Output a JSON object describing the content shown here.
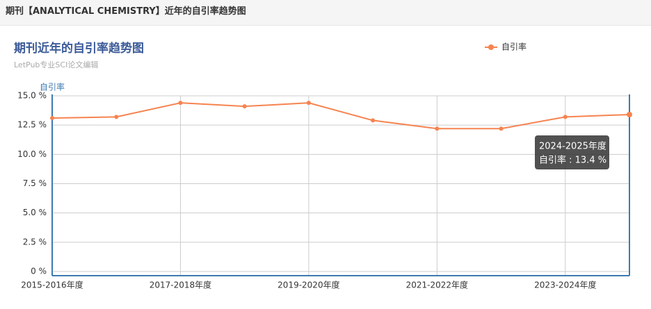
{
  "header": {
    "title": "期刊【ANALYTICAL CHEMISTRY】近年的自引率趋势图"
  },
  "chart_data": {
    "type": "line",
    "title": "期刊近年的自引率趋势图",
    "subtitle": "LetPub专业SCI论文编辑",
    "y_axis_label": "自引率",
    "categories": [
      "2015-2016年度",
      null,
      "2017-2018年度",
      null,
      "2019-2020年度",
      null,
      "2021-2022年度",
      null,
      "2023-2024年度",
      "2024-2025年度"
    ],
    "series": [
      {
        "name": "自引率",
        "color": "#f6834f",
        "values": [
          13.1,
          13.2,
          14.4,
          14.1,
          14.4,
          12.9,
          12.2,
          12.2,
          13.2,
          13.4
        ]
      }
    ],
    "ylim": [
      0,
      15
    ],
    "yticks": [
      {
        "value": 0,
        "label": "0 %"
      },
      {
        "value": 2.5,
        "label": "2.5 %"
      },
      {
        "value": 5,
        "label": "5.0 %"
      },
      {
        "value": 7.5,
        "label": "7.5 %"
      },
      {
        "value": 10,
        "label": "10.0 %"
      },
      {
        "value": 12.5,
        "label": "12.5 %"
      },
      {
        "value": 15,
        "label": "15.0 %"
      }
    ],
    "grid": true,
    "tooltip": {
      "text": "自引率 : 13.4 %"
    }
  }
}
